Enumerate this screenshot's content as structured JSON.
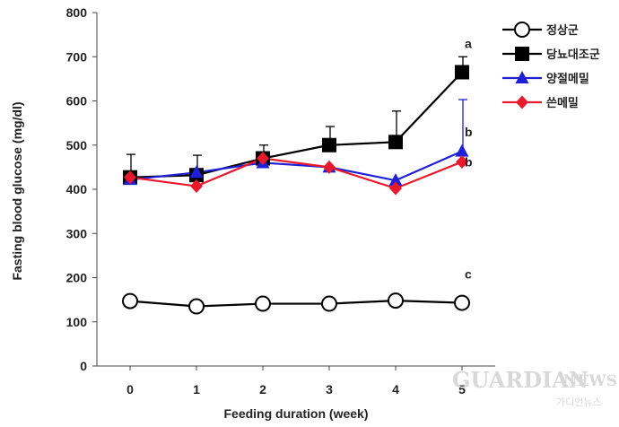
{
  "chart_data": {
    "type": "line",
    "xlabel": "Feeding duration  (week)",
    "ylabel": "Fasting blood glucose  (mg/dl)",
    "x": [
      0,
      1,
      2,
      3,
      4,
      5
    ],
    "xticks": [
      "0",
      "1",
      "2",
      "3",
      "4",
      "5"
    ],
    "ylim": [
      0,
      800
    ],
    "yticks": [
      "0",
      "100",
      "200",
      "300",
      "400",
      "500",
      "600",
      "700",
      "800"
    ],
    "grid": false,
    "legend_position": "top-right",
    "series": [
      {
        "name": "정상군",
        "values": [
          147,
          135,
          141,
          141,
          148,
          143
        ],
        "errors": [
          0,
          0,
          0,
          0,
          0,
          0
        ],
        "color": "#000000",
        "marker": "circle-open"
      },
      {
        "name": "당뇨대조군",
        "values": [
          427,
          432,
          470,
          500,
          507,
          665
        ],
        "errors": [
          52,
          45,
          30,
          42,
          70,
          35
        ],
        "color": "#000000",
        "marker": "square"
      },
      {
        "name": "양절메밀",
        "values": [
          422,
          438,
          460,
          450,
          420,
          486
        ],
        "errors": [
          0,
          0,
          0,
          0,
          0,
          117
        ],
        "color": "#1f1fd6",
        "marker": "triangle"
      },
      {
        "name": "쓴메밀",
        "values": [
          427,
          407,
          470,
          450,
          402,
          462
        ],
        "errors": [
          0,
          0,
          0,
          0,
          0,
          0
        ],
        "color": "#e8192c",
        "marker": "diamond"
      }
    ],
    "annotations": [
      {
        "text": "a",
        "x": 5,
        "y": 720
      },
      {
        "text": "b",
        "x": 5,
        "y": 520
      },
      {
        "text": "b",
        "x": 5,
        "y": 452
      },
      {
        "text": "c",
        "x": 5,
        "y": 198
      }
    ]
  },
  "watermark": {
    "main": "GUARDIAN",
    "news": "NEWS",
    "sub": "가디언뉴스"
  }
}
